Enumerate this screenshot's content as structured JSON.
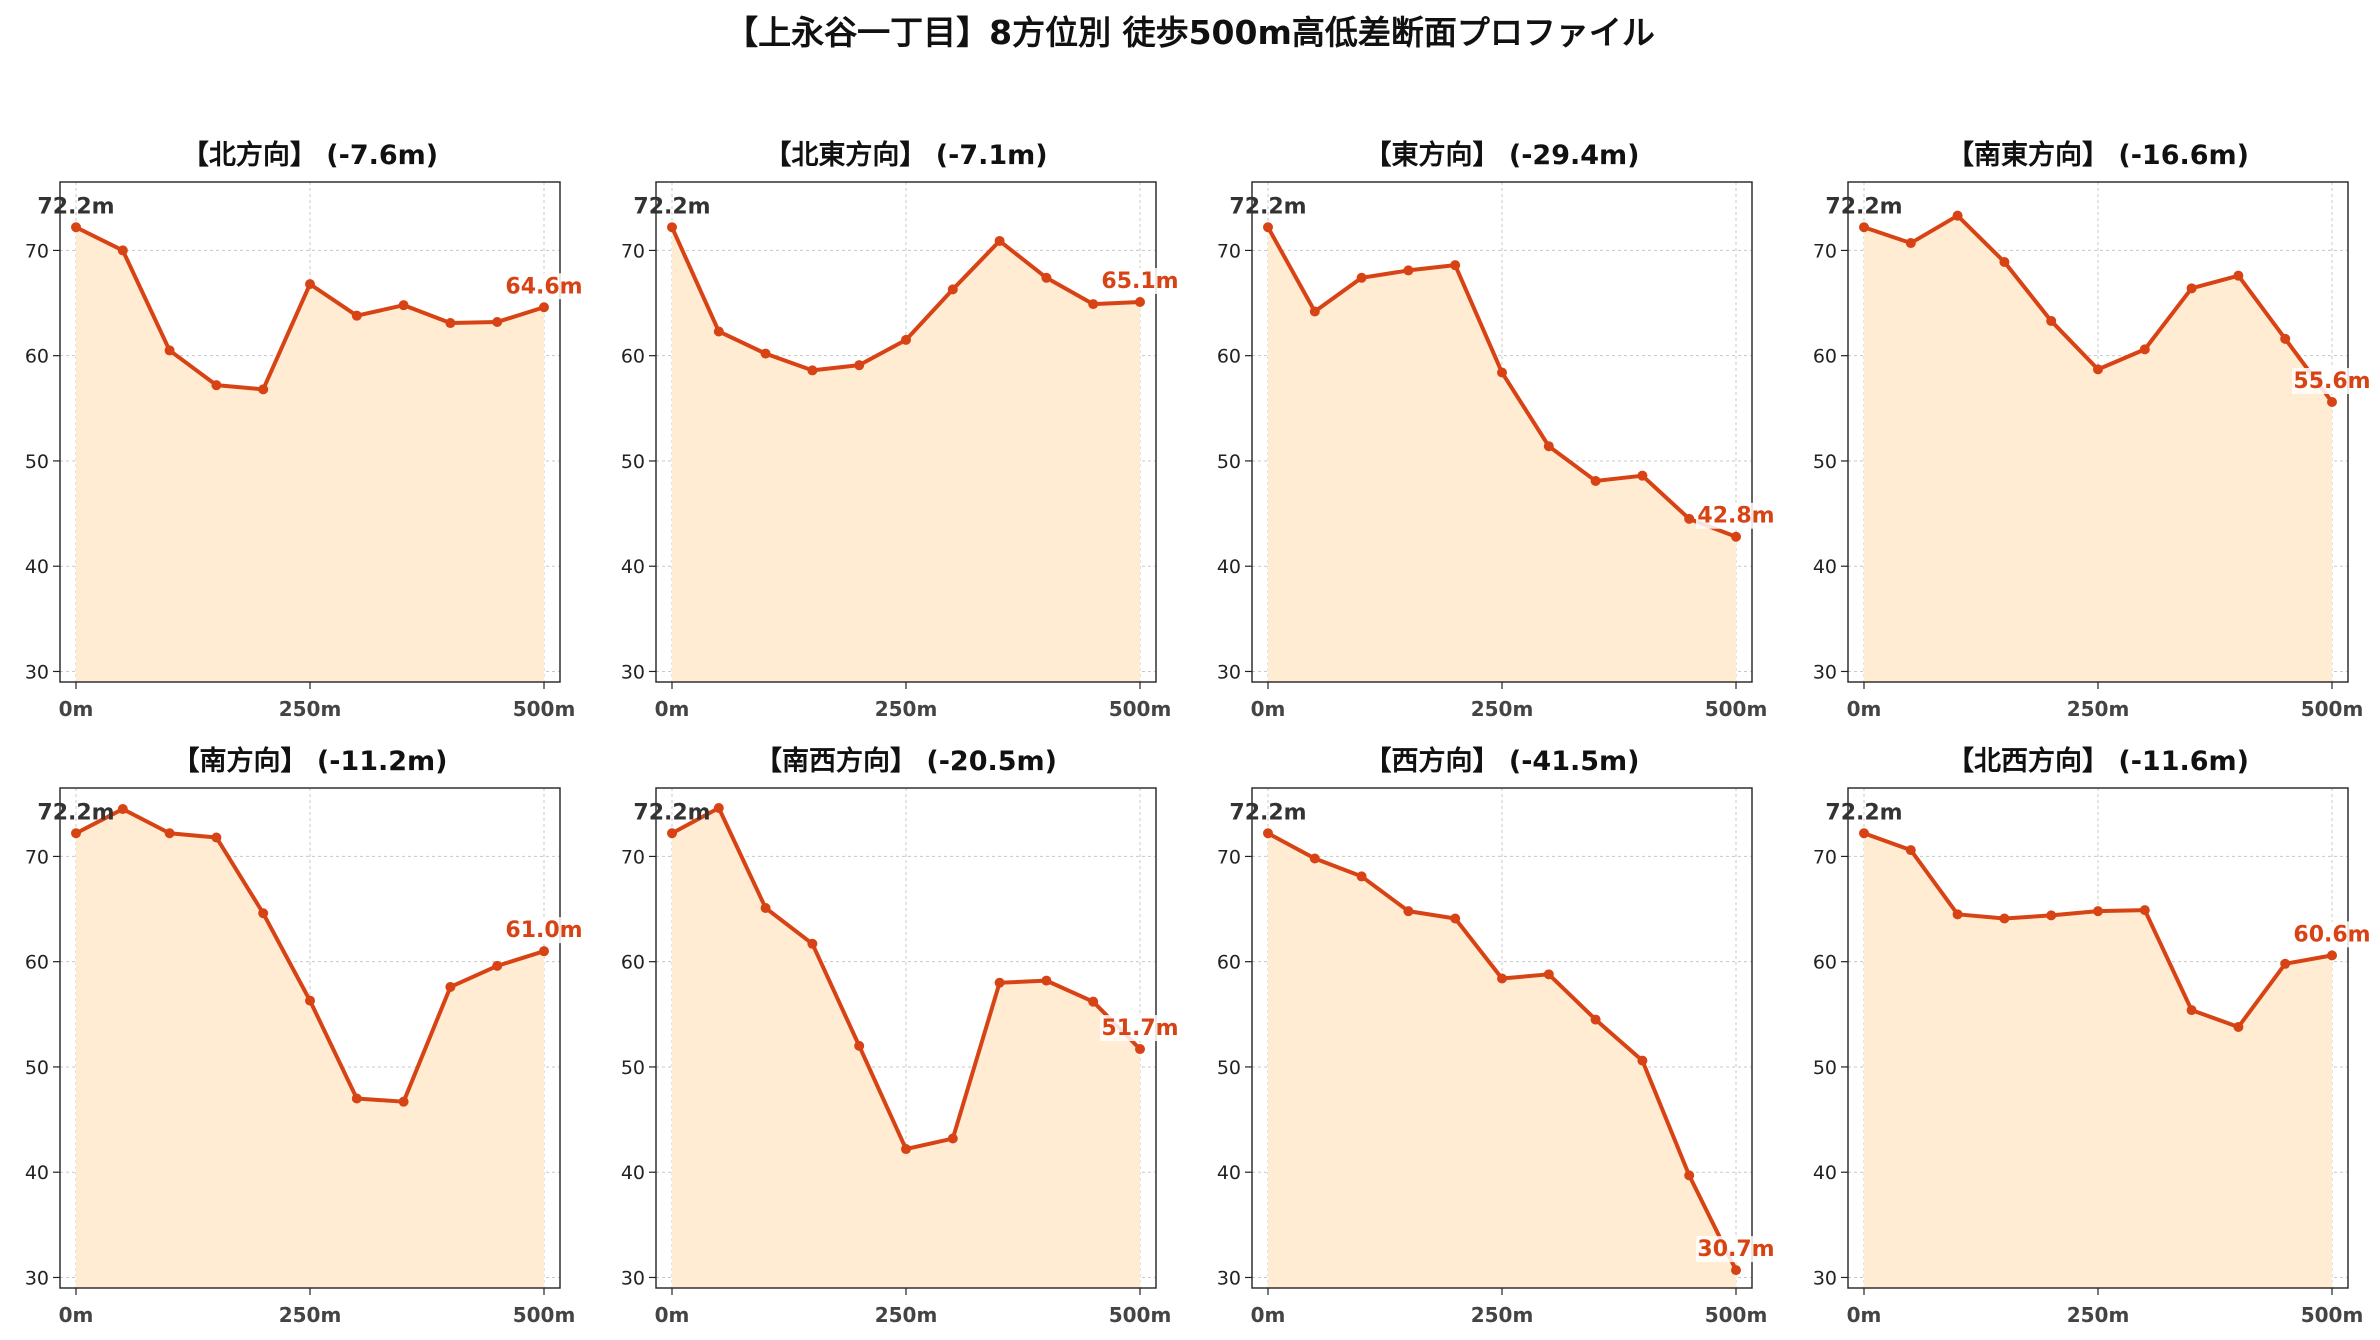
{
  "page": {
    "title": "【上永谷一丁目】8方位別 徒歩500m高低差断面プロファイル"
  },
  "colors": {
    "line": "#d84315",
    "fill": "#ffecd2",
    "end_label": "#d84315",
    "start_label": "#333333"
  },
  "chart_data": [
    {
      "type": "area",
      "title": "【北方向】 (-7.6m)",
      "x": [
        0,
        50,
        100,
        150,
        200,
        250,
        300,
        350,
        400,
        450,
        500
      ],
      "y": [
        72.2,
        70.0,
        60.5,
        57.2,
        56.8,
        66.8,
        63.8,
        64.8,
        63.1,
        63.2,
        64.6
      ],
      "xtick_labels": [
        "0m",
        "250m",
        "500m"
      ],
      "yticks": [
        30,
        40,
        50,
        60,
        70
      ],
      "ylim": [
        29,
        76.5
      ],
      "start_label": "72.2m",
      "end_label": "64.6m",
      "grid": true
    },
    {
      "type": "area",
      "title": "【北東方向】 (-7.1m)",
      "x": [
        0,
        50,
        100,
        150,
        200,
        250,
        300,
        350,
        400,
        450,
        500
      ],
      "y": [
        72.2,
        62.3,
        60.2,
        58.6,
        59.1,
        61.5,
        66.3,
        70.9,
        67.4,
        64.9,
        65.1
      ],
      "xtick_labels": [
        "0m",
        "250m",
        "500m"
      ],
      "yticks": [
        30,
        40,
        50,
        60,
        70
      ],
      "ylim": [
        29,
        76.5
      ],
      "start_label": "72.2m",
      "end_label": "65.1m",
      "grid": true
    },
    {
      "type": "area",
      "title": "【東方向】 (-29.4m)",
      "x": [
        0,
        50,
        100,
        150,
        200,
        250,
        300,
        350,
        400,
        450,
        500
      ],
      "y": [
        72.2,
        64.2,
        67.4,
        68.1,
        68.6,
        58.4,
        51.4,
        48.1,
        48.6,
        44.5,
        42.8
      ],
      "xtick_labels": [
        "0m",
        "250m",
        "500m"
      ],
      "yticks": [
        30,
        40,
        50,
        60,
        70
      ],
      "ylim": [
        29,
        76.5
      ],
      "start_label": "72.2m",
      "end_label": "42.8m",
      "grid": true
    },
    {
      "type": "area",
      "title": "【南東方向】 (-16.6m)",
      "x": [
        0,
        50,
        100,
        150,
        200,
        250,
        300,
        350,
        400,
        450,
        500
      ],
      "y": [
        72.2,
        70.7,
        73.3,
        68.9,
        63.3,
        58.7,
        60.6,
        66.4,
        67.6,
        61.6,
        55.6
      ],
      "xtick_labels": [
        "0m",
        "250m",
        "500m"
      ],
      "yticks": [
        30,
        40,
        50,
        60,
        70
      ],
      "ylim": [
        29,
        76.5
      ],
      "start_label": "72.2m",
      "end_label": "55.6m",
      "grid": true
    },
    {
      "type": "area",
      "title": "【南方向】 (-11.2m)",
      "x": [
        0,
        50,
        100,
        150,
        200,
        250,
        300,
        350,
        400,
        450,
        500
      ],
      "y": [
        72.2,
        74.5,
        72.2,
        71.8,
        64.6,
        56.3,
        47.0,
        46.7,
        57.6,
        59.6,
        61.0
      ],
      "xtick_labels": [
        "0m",
        "250m",
        "500m"
      ],
      "yticks": [
        30,
        40,
        50,
        60,
        70
      ],
      "ylim": [
        29,
        76.5
      ],
      "start_label": "72.2m",
      "end_label": "61.0m",
      "grid": true
    },
    {
      "type": "area",
      "title": "【南西方向】 (-20.5m)",
      "x": [
        0,
        50,
        100,
        150,
        200,
        250,
        300,
        350,
        400,
        450,
        500
      ],
      "y": [
        72.2,
        74.6,
        65.1,
        61.7,
        52.0,
        42.2,
        43.2,
        58.0,
        58.2,
        56.2,
        51.7
      ],
      "xtick_labels": [
        "0m",
        "250m",
        "500m"
      ],
      "yticks": [
        30,
        40,
        50,
        60,
        70
      ],
      "ylim": [
        29,
        76.5
      ],
      "start_label": "72.2m",
      "end_label": "51.7m",
      "grid": true
    },
    {
      "type": "area",
      "title": "【西方向】 (-41.5m)",
      "x": [
        0,
        50,
        100,
        150,
        200,
        250,
        300,
        350,
        400,
        450,
        500
      ],
      "y": [
        72.2,
        69.8,
        68.1,
        64.8,
        64.1,
        58.4,
        58.8,
        54.5,
        50.6,
        39.7,
        30.7
      ],
      "xtick_labels": [
        "0m",
        "250m",
        "500m"
      ],
      "yticks": [
        30,
        40,
        50,
        60,
        70
      ],
      "ylim": [
        29,
        76.5
      ],
      "start_label": "72.2m",
      "end_label": "30.7m",
      "grid": true
    },
    {
      "type": "area",
      "title": "【北西方向】 (-11.6m)",
      "x": [
        0,
        50,
        100,
        150,
        200,
        250,
        300,
        350,
        400,
        450,
        500
      ],
      "y": [
        72.2,
        70.6,
        64.5,
        64.1,
        64.4,
        64.8,
        64.9,
        55.4,
        53.8,
        59.8,
        60.6
      ],
      "xtick_labels": [
        "0m",
        "250m",
        "500m"
      ],
      "yticks": [
        30,
        40,
        50,
        60,
        70
      ],
      "ylim": [
        29,
        76.5
      ],
      "start_label": "72.2m",
      "end_label": "60.6m",
      "grid": true
    }
  ]
}
